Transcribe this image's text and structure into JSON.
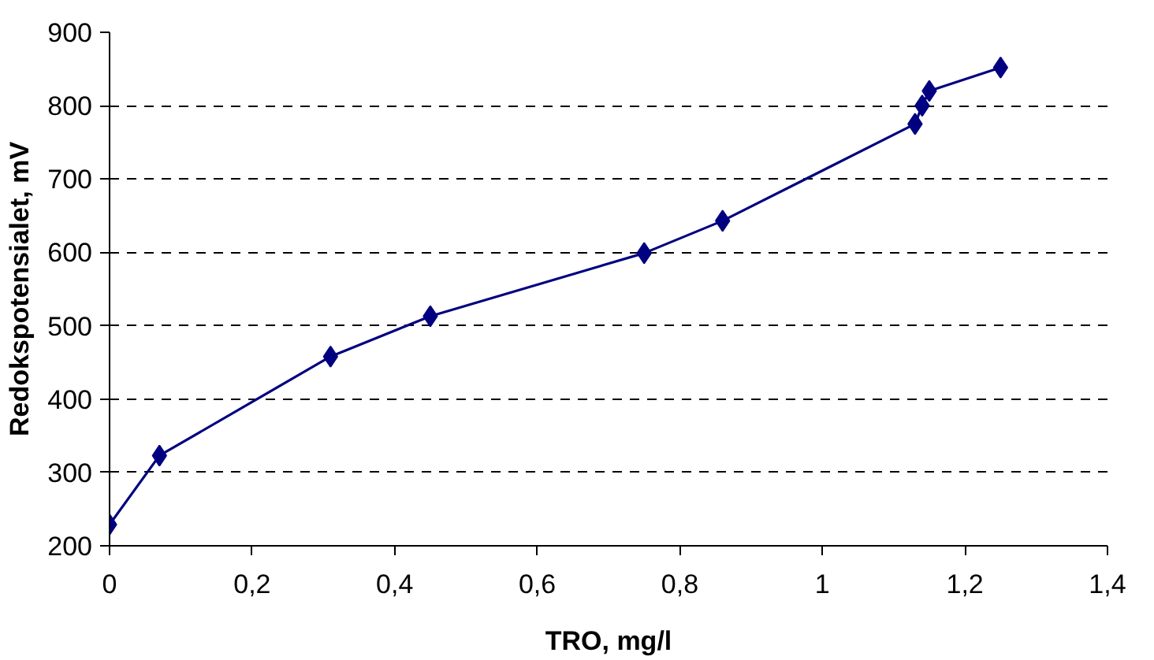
{
  "chart_data": {
    "type": "line",
    "xlabel": "TRO, mg/l",
    "ylabel": "Redokspotensialet, mV",
    "x": [
      0,
      0.07,
      0.31,
      0.45,
      0.75,
      0.86,
      1.13,
      1.14,
      1.15,
      1.25
    ],
    "series": [
      {
        "color": "#000080",
        "values": [
          229,
          323,
          458,
          513,
          599,
          643,
          775,
          800,
          820,
          852
        ]
      }
    ],
    "xlim": [
      0,
      1.4
    ],
    "ylim": [
      200,
      900
    ],
    "xticks": [
      0,
      {
        "value": 0.2,
        "label": "0,2"
      },
      {
        "value": 0.4,
        "label": "0,4"
      },
      {
        "value": 0.6,
        "label": "0,6"
      },
      {
        "value": 0.8,
        "label": "0,8"
      },
      1,
      {
        "value": 1.2,
        "label": "1,2"
      },
      {
        "value": 1.4,
        "label": "1,4"
      }
    ],
    "yticks": [
      200,
      300,
      400,
      500,
      600,
      700,
      800,
      900
    ],
    "grid": "y",
    "marker": "diamond",
    "line_style": "solid"
  }
}
